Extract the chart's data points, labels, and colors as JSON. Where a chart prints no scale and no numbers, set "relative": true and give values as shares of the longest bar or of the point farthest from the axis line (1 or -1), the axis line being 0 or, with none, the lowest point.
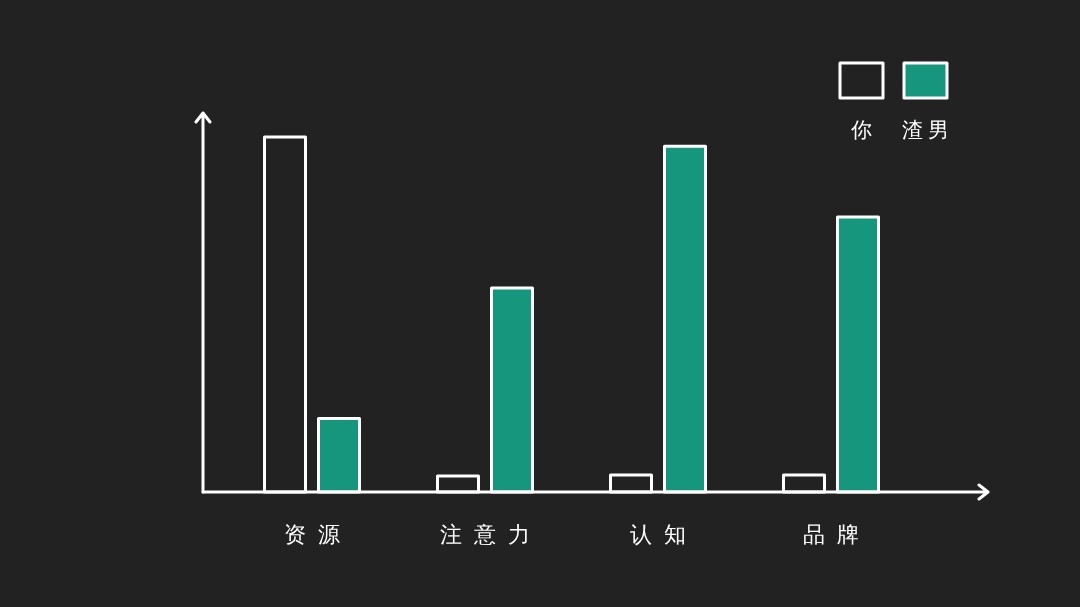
{
  "chart_data": {
    "type": "bar",
    "relative": true,
    "categories": [
      "资源",
      "注意力",
      "认知",
      "品牌"
    ],
    "series": [
      {
        "name": "你",
        "color": "#222222",
        "values": [
          1,
          0.045,
          0.048,
          0.048
        ]
      },
      {
        "name": "渣男",
        "color": "#17967e",
        "values": [
          0.207,
          0.575,
          0.974,
          0.775
        ]
      }
    ],
    "legend": "top right"
  }
}
